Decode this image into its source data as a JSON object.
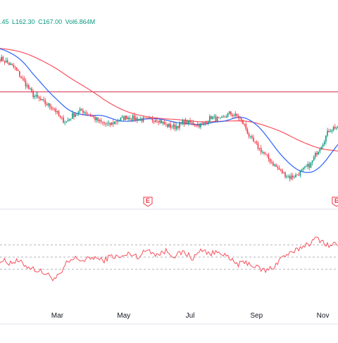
{
  "legend": {
    "open_fragment": ".45",
    "low": "L162.30",
    "close": "C167.00",
    "volume": "Vol6.864M"
  },
  "earnings_marker": "E",
  "colors": {
    "up": "#089981",
    "down": "#f23645",
    "ma_fast": "#2962ff",
    "ma_slow": "#f7525f",
    "rsi": "#f7525f",
    "hline": "#d12e4b",
    "grid": "#b2b5be"
  },
  "chart_data": [
    {
      "type": "candlestick",
      "title": "",
      "x_axis_labels": [
        "Mar",
        "May",
        "Jul",
        "Sep",
        "Nov"
      ],
      "x_domain": [
        0,
        224
      ],
      "x_label_positions": [
        38,
        82,
        126,
        170,
        214
      ],
      "y_domain": [
        158,
        264
      ],
      "grid": false,
      "series": [
        {
          "kind": "moving_average_fast"
        },
        {
          "kind": "moving_average_slow"
        }
      ],
      "horizontal_level": 226,
      "earnings_markers_at": [
        98,
        223
      ],
      "keypoints": [
        [
          0,
          246
        ],
        [
          4,
          244
        ],
        [
          10,
          240
        ],
        [
          16,
          232
        ],
        [
          22,
          224
        ],
        [
          30,
          219
        ],
        [
          36,
          216
        ],
        [
          40,
          210
        ],
        [
          44,
          208
        ],
        [
          48,
          212
        ],
        [
          54,
          215
        ],
        [
          60,
          212
        ],
        [
          66,
          208
        ],
        [
          72,
          206
        ],
        [
          78,
          209
        ],
        [
          84,
          211
        ],
        [
          90,
          210
        ],
        [
          98,
          209
        ],
        [
          104,
          210
        ],
        [
          110,
          206
        ],
        [
          116,
          205
        ],
        [
          122,
          208
        ],
        [
          128,
          207
        ],
        [
          134,
          206
        ],
        [
          140,
          211
        ],
        [
          146,
          209
        ],
        [
          152,
          213
        ],
        [
          158,
          211
        ],
        [
          162,
          206
        ],
        [
          166,
          198
        ],
        [
          170,
          194
        ],
        [
          176,
          188
        ],
        [
          182,
          182
        ],
        [
          188,
          177
        ],
        [
          192,
          175
        ],
        [
          196,
          176
        ],
        [
          202,
          180
        ],
        [
          206,
          183
        ],
        [
          210,
          190
        ],
        [
          214,
          196
        ],
        [
          218,
          203
        ],
        [
          222,
          205
        ],
        [
          224,
          204
        ]
      ]
    },
    {
      "type": "line",
      "name": "",
      "y_domain": [
        0,
        100
      ],
      "levels": [
        70,
        50,
        30
      ],
      "keypoints": [
        [
          0,
          45
        ],
        [
          6,
          41
        ],
        [
          12,
          43
        ],
        [
          18,
          35
        ],
        [
          24,
          29
        ],
        [
          30,
          23
        ],
        [
          36,
          14
        ],
        [
          40,
          20
        ],
        [
          44,
          39
        ],
        [
          50,
          48
        ],
        [
          56,
          44
        ],
        [
          62,
          50
        ],
        [
          68,
          44
        ],
        [
          74,
          52
        ],
        [
          80,
          49
        ],
        [
          86,
          56
        ],
        [
          92,
          51
        ],
        [
          98,
          63
        ],
        [
          104,
          54
        ],
        [
          110,
          60
        ],
        [
          116,
          52
        ],
        [
          122,
          58
        ],
        [
          128,
          48
        ],
        [
          134,
          63
        ],
        [
          140,
          55
        ],
        [
          146,
          60
        ],
        [
          152,
          46
        ],
        [
          158,
          38
        ],
        [
          164,
          41
        ],
        [
          170,
          33
        ],
        [
          176,
          27
        ],
        [
          182,
          35
        ],
        [
          186,
          48
        ],
        [
          190,
          54
        ],
        [
          194,
          56
        ],
        [
          198,
          64
        ],
        [
          202,
          70
        ],
        [
          206,
          74
        ],
        [
          210,
          81
        ],
        [
          214,
          76
        ],
        [
          218,
          68
        ],
        [
          222,
          72
        ],
        [
          224,
          70
        ]
      ]
    }
  ]
}
